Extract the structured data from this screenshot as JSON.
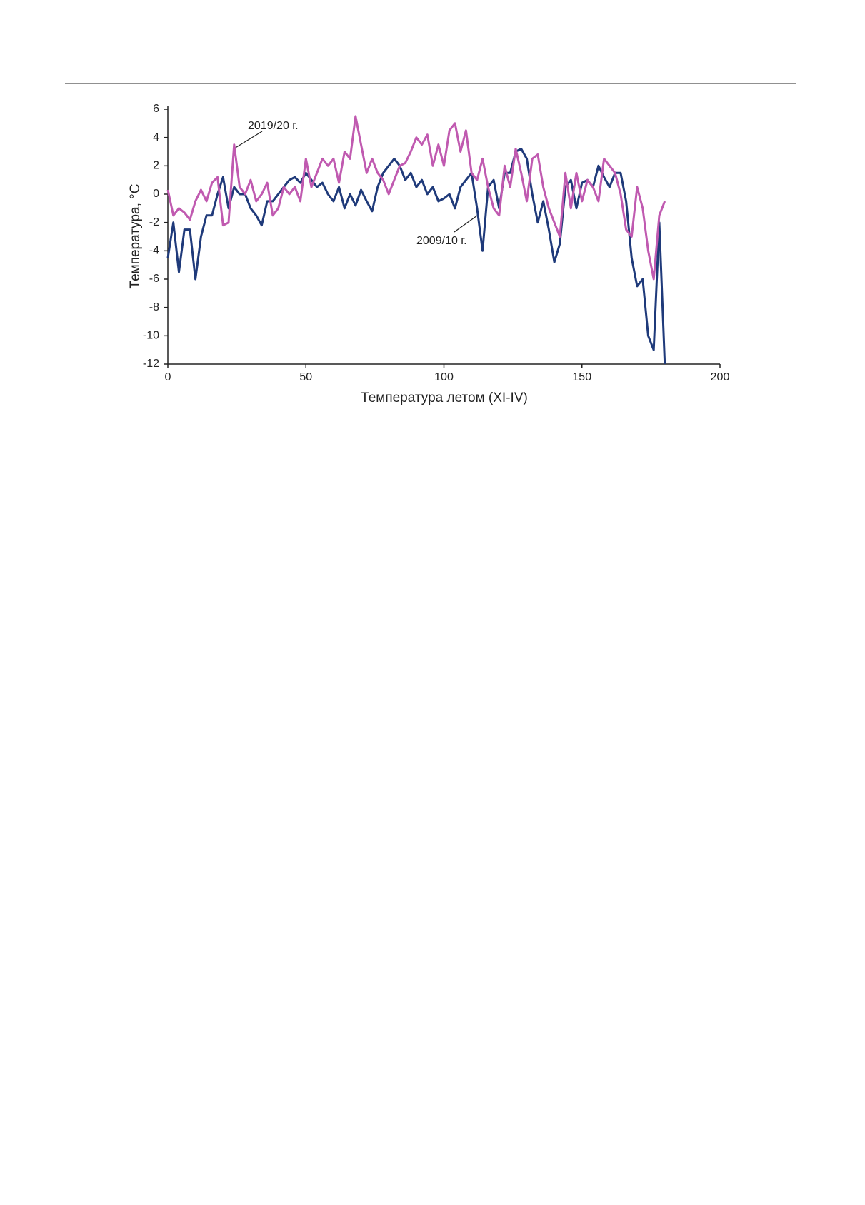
{
  "chart_data": {
    "type": "line",
    "xlabel": "Температура летом (XI-IV)",
    "ylabel": "Температура, °С",
    "annotations": [
      "2019/20 г.",
      "2009/10 г."
    ],
    "xlim": [
      0,
      200
    ],
    "xticks": [
      0,
      50,
      100,
      150,
      200
    ],
    "ylim": [
      -12,
      6
    ],
    "yticks": [
      -12,
      -10,
      -8,
      -6,
      -4,
      -2,
      0,
      2,
      4,
      6
    ],
    "x": [
      0,
      2,
      4,
      6,
      8,
      10,
      12,
      14,
      16,
      18,
      20,
      22,
      24,
      26,
      28,
      30,
      32,
      34,
      36,
      38,
      40,
      42,
      44,
      46,
      48,
      50,
      52,
      54,
      56,
      58,
      60,
      62,
      64,
      66,
      68,
      70,
      72,
      74,
      76,
      78,
      80,
      82,
      84,
      86,
      88,
      90,
      92,
      94,
      96,
      98,
      100,
      102,
      104,
      106,
      108,
      110,
      112,
      114,
      116,
      118,
      120,
      122,
      124,
      126,
      128,
      130,
      132,
      134,
      136,
      138,
      140,
      142,
      144,
      146,
      148,
      150,
      152,
      154,
      156,
      158,
      160,
      162,
      164,
      166,
      168,
      170,
      172,
      174,
      176,
      178,
      180
    ],
    "series": [
      {
        "name": "2009/10 г.",
        "color": "#1f3a7a",
        "values": [
          -4.5,
          -2,
          -5.5,
          -2.5,
          -2.5,
          -6,
          -3,
          -1.5,
          -1.5,
          0,
          1.2,
          -1,
          0.5,
          0,
          0,
          -1,
          -1.5,
          -2.2,
          -0.5,
          -0.5,
          0,
          0.5,
          1,
          1.2,
          0.8,
          1.5,
          1,
          0.5,
          0.8,
          0,
          -0.5,
          0.5,
          -1,
          0,
          -0.8,
          0.3,
          -0.5,
          -1.2,
          0.5,
          1.5,
          2,
          2.5,
          2,
          1,
          1.5,
          0.5,
          1,
          0,
          0.5,
          -0.5,
          -0.3,
          0,
          -1,
          0.5,
          1,
          1.5,
          -1,
          -4,
          0.5,
          1,
          -1,
          1.5,
          1.5,
          3,
          3.2,
          2.5,
          0,
          -2,
          -0.5,
          -2.5,
          -4.8,
          -3.5,
          0.5,
          1,
          -1,
          0.8,
          1,
          0.5,
          2,
          1.2,
          0.5,
          1.5,
          1.5,
          -0.5,
          -4.5,
          -6.5,
          -6,
          -10,
          -11,
          -2,
          -12
        ]
      },
      {
        "name": "2019/20 г.",
        "color": "#c05ab0",
        "values": [
          0.3,
          -1.5,
          -1,
          -1.3,
          -1.8,
          -0.5,
          0.3,
          -0.5,
          0.8,
          1.2,
          -2.2,
          -2,
          3.5,
          0.5,
          0,
          1,
          -0.5,
          0,
          0.8,
          -1.5,
          -1,
          0.5,
          0,
          0.5,
          -0.5,
          2.5,
          0.5,
          1.5,
          2.5,
          2,
          2.5,
          0.8,
          3,
          2.5,
          5.5,
          3.5,
          1.5,
          2.5,
          1.5,
          1,
          0,
          1,
          2,
          2.2,
          3,
          4,
          3.5,
          4.2,
          2,
          3.5,
          2,
          4.5,
          5,
          3,
          4.5,
          1.5,
          1,
          2.5,
          0.5,
          -1,
          -1.5,
          2,
          0.5,
          3.2,
          1.5,
          -0.5,
          2.5,
          2.8,
          0.5,
          -1,
          -2,
          -3,
          1.5,
          -1,
          1.5,
          -0.5,
          1,
          0.5,
          -0.5,
          2.5,
          2,
          1.5,
          0,
          -2.5,
          -3,
          0.5,
          -1,
          -4,
          -6,
          -1.5,
          -0.5
        ]
      }
    ]
  }
}
